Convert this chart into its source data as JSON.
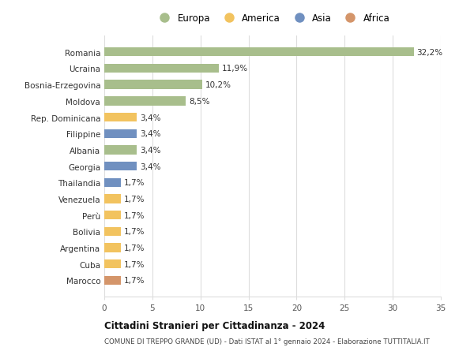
{
  "categories": [
    "Marocco",
    "Cuba",
    "Argentina",
    "Bolivia",
    "Perù",
    "Venezuela",
    "Thailandia",
    "Georgia",
    "Albania",
    "Filippine",
    "Rep. Dominicana",
    "Moldova",
    "Bosnia-Erzegovina",
    "Ucraina",
    "Romania"
  ],
  "values": [
    1.7,
    1.7,
    1.7,
    1.7,
    1.7,
    1.7,
    1.7,
    3.4,
    3.4,
    3.4,
    3.4,
    8.5,
    10.2,
    11.9,
    32.2
  ],
  "labels": [
    "1,7%",
    "1,7%",
    "1,7%",
    "1,7%",
    "1,7%",
    "1,7%",
    "1,7%",
    "3,4%",
    "3,4%",
    "3,4%",
    "3,4%",
    "8,5%",
    "10,2%",
    "11,9%",
    "32,2%"
  ],
  "colors": [
    "#d4956a",
    "#f2c35f",
    "#f2c35f",
    "#f2c35f",
    "#f2c35f",
    "#f2c35f",
    "#7090c0",
    "#7090c0",
    "#a8be8c",
    "#7090c0",
    "#f2c35f",
    "#a8be8c",
    "#a8be8c",
    "#a8be8c",
    "#a8be8c"
  ],
  "legend_labels": [
    "Europa",
    "America",
    "Asia",
    "Africa"
  ],
  "legend_colors": [
    "#a8be8c",
    "#f2c35f",
    "#7090c0",
    "#d4956a"
  ],
  "title": "Cittadini Stranieri per Cittadinanza - 2024",
  "subtitle": "COMUNE DI TREPPO GRANDE (UD) - Dati ISTAT al 1° gennaio 2024 - Elaborazione TUTTITALIA.IT",
  "xlim": [
    0,
    35
  ],
  "xticks": [
    0,
    5,
    10,
    15,
    20,
    25,
    30,
    35
  ],
  "background_color": "#ffffff",
  "grid_color": "#dddddd",
  "bar_height": 0.55
}
